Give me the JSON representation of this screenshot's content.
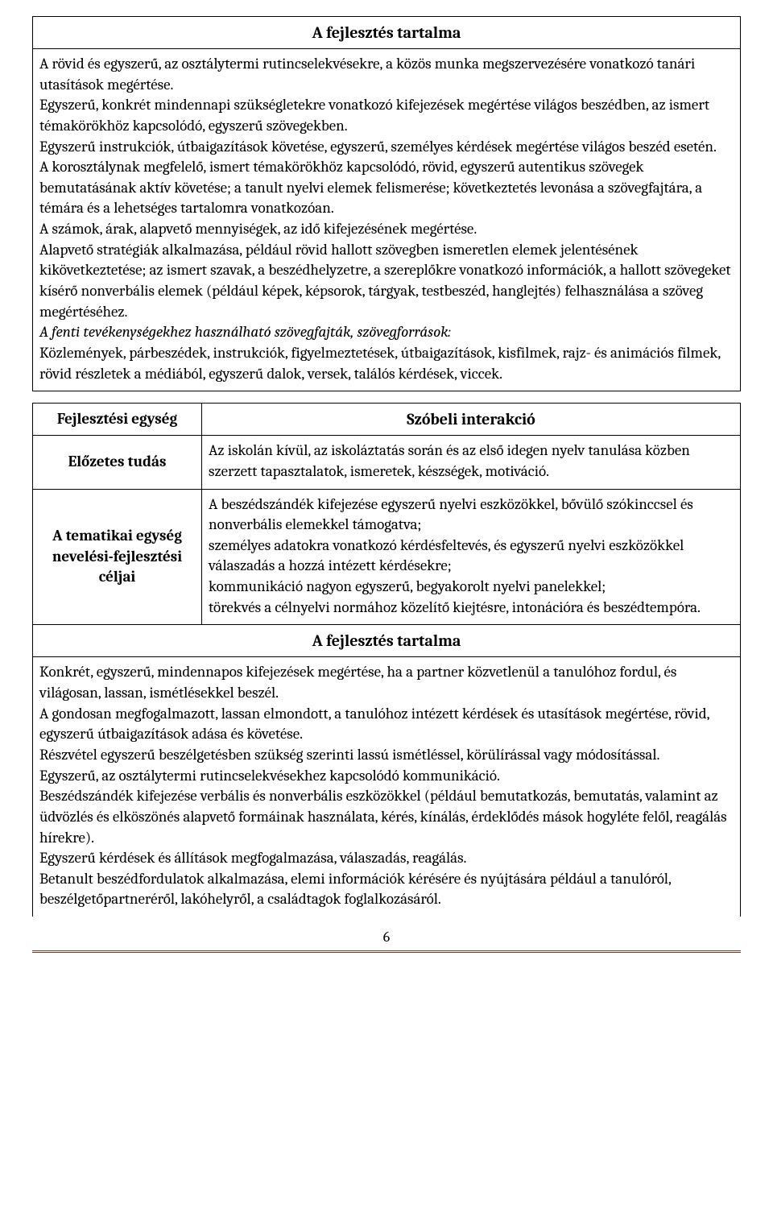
{
  "table1": {
    "header": "A fejlesztés tartalma",
    "paragraphs": [
      {
        "text": "A rövid és egyszerű, az osztálytermi rutincselekvésekre, a közös munka megszervezésére vonatkozó tanári utasítások megértése."
      },
      {
        "text": "Egyszerű, konkrét mindennapi szükségletekre vonatkozó kifejezések megértése világos beszédben, az ismert témakörökhöz kapcsolódó, egyszerű szövegekben."
      },
      {
        "text": "Egyszerű instrukciók, útbaigazítások követése, egyszerű, személyes kérdések megértése világos beszéd esetén."
      },
      {
        "text": "A korosztálynak megfelelő, ismert témakörökhöz kapcsolódó, rövid, egyszerű autentikus szövegek bemutatásának aktív követése; a tanult nyelvi elemek felismerése; következtetés levonása a szövegfajtára, a témára és a lehetséges tartalomra vonatkozóan."
      },
      {
        "text": "A számok, árak, alapvető mennyiségek, az idő kifejezésének megértése."
      },
      {
        "text": "Alapvető stratégiák alkalmazása, például rövid hallott szövegben ismeretlen elemek jelentésének kikövetkeztetése; az ismert szavak, a beszédhelyzetre, a szereplőkre vonatkozó információk, a hallott szövegeket kísérő nonverbális elemek (például képek, képsorok, tárgyak, testbeszéd, hanglejtés) felhasználása a szöveg megértéséhez."
      },
      {
        "text": "A fenti tevékenységekhez használható szövegfajták, szövegforrások:",
        "italic": true
      },
      {
        "text": "Közlemények, párbeszédek, instrukciók, figyelmeztetések, útbaigazítások, kisfilmek, rajz- és animációs filmek, rövid részletek a médiából, egyszerű dalok, versek, találós kérdések, viccek."
      }
    ]
  },
  "table2": {
    "row1": {
      "label": "Fejlesztési egység",
      "title": "Szóbeli interakció"
    },
    "row2": {
      "label": "Előzetes tudás",
      "text": "Az iskolán kívül, az iskoláztatás során és az első idegen nyelv tanulása közben szerzett tapasztalatok, ismeretek, készségek, motiváció."
    },
    "row3": {
      "label": "A tematikai egység nevelési-fejlesztési céljai",
      "lines": [
        "A beszédszándék kifejezése egyszerű nyelvi eszközökkel, bővülő szókinccsel és nonverbális elemekkel támogatva;",
        "személyes adatokra vonatkozó kérdésfeltevés, és egyszerű nyelvi eszközökkel válaszadás a hozzá intézett kérdésekre;",
        "kommunikáció nagyon egyszerű, begyakorolt nyelvi panelekkel;",
        "törekvés a célnyelvi normához közelítő kiejtésre, intonációra és beszédtempóra."
      ]
    },
    "header2": "A fejlesztés tartalma",
    "paragraphs": [
      {
        "text": "Konkrét, egyszerű, mindennapos kifejezések megértése, ha a partner közvetlenül a tanulóhoz fordul, és világosan, lassan, ismétlésekkel beszél."
      },
      {
        "text": "A gondosan megfogalmazott, lassan elmondott, a tanulóhoz intézett kérdések és utasítások megértése, rövid, egyszerű útbaigazítások adása és követése."
      },
      {
        "text": "Részvétel egyszerű beszélgetésben szükség szerinti lassú ismétléssel, körülírással vagy módosítással."
      },
      {
        "text": "Egyszerű, az osztálytermi rutincselekvésekhez kapcsolódó kommunikáció."
      },
      {
        "text": "Beszédszándék kifejezése verbális és nonverbális eszközökkel (például bemutatkozás, bemutatás, valamint az üdvözlés és elköszönés alapvető formáinak használata, kérés, kínálás, érdeklődés mások hogyléte felől, reagálás hírekre)."
      },
      {
        "text": "Egyszerű kérdések és állítások megfogalmazása, válaszadás, reagálás."
      },
      {
        "text": "Betanult beszédfordulatok alkalmazása, elemi információk kérésére és nyújtására például a tanulóról, beszélgetőpartneréről, lakóhelyről, a családtagok foglalkozásáról."
      }
    ]
  },
  "page_number": "6"
}
